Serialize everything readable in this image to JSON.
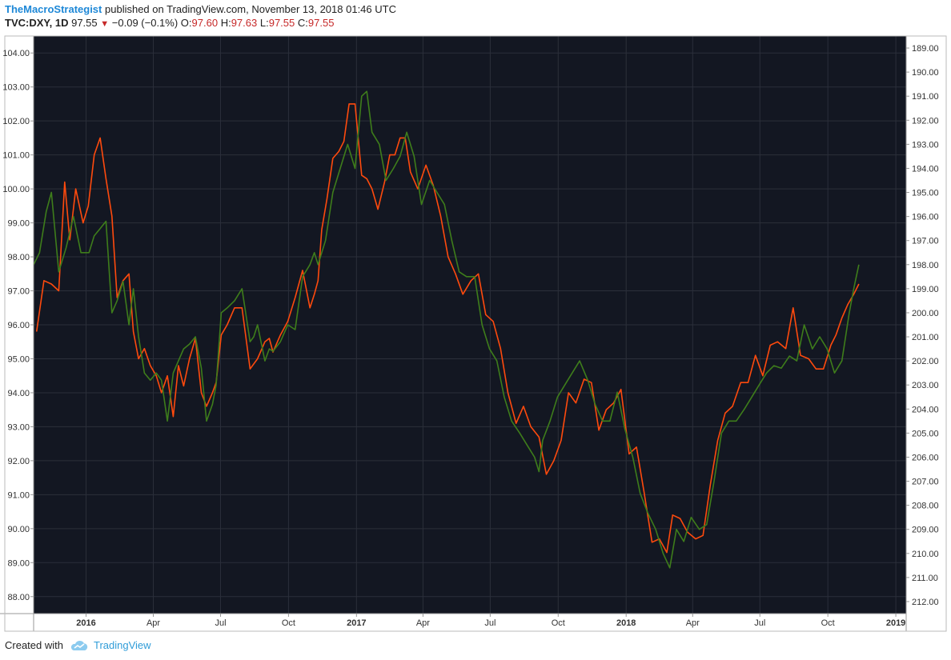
{
  "header": {
    "author": "TheMacroStrategist",
    "published": "published on TradingView.com, November 13, 2018 01:46 UTC",
    "symbol": "TVC:DXY, 1D",
    "last": "97.55",
    "change": "−0.09 (−0.1%)",
    "o_label": "O:",
    "o_value": "97.60",
    "h_label": "H:",
    "h_value": "97.63",
    "l_label": "L:",
    "l_value": "97.55",
    "c_label": "C:",
    "c_value": "97.55"
  },
  "footer": {
    "created_with": "Created with",
    "brand": "TradingView"
  },
  "colors": {
    "background": "#131722",
    "grid": "#2b2f3a",
    "dxy": "#ff4a0d",
    "inverted": "#3e7d1b",
    "axis_text": "#333333"
  },
  "chart_data": {
    "type": "line",
    "title": "",
    "xlabel": "",
    "ylabel": "",
    "x_tick_labels": [
      "2016",
      "Apr",
      "Jul",
      "Oct",
      "2017",
      "Apr",
      "Jul",
      "Oct",
      "2018",
      "Apr",
      "Jul",
      "Oct",
      "2019"
    ],
    "x_tick_dates": [
      "2016-01-01",
      "2016-04-01",
      "2016-07-01",
      "2016-10-01",
      "2017-01-01",
      "2017-04-01",
      "2017-07-01",
      "2017-10-01",
      "2018-01-01",
      "2018-04-01",
      "2018-07-01",
      "2018-10-01",
      "2019-01-01"
    ],
    "x_range": [
      "2015-10-22",
      "2019-01-15"
    ],
    "left_axis": {
      "range": [
        87.5,
        104.5
      ],
      "tick_labels": [
        "104.00",
        "103.00",
        "102.00",
        "101.00",
        "100.00",
        "99.00",
        "98.00",
        "97.00",
        "96.00",
        "95.00",
        "94.00",
        "93.00",
        "92.00",
        "91.00",
        "90.00",
        "89.00",
        "88.00"
      ]
    },
    "right_axis": {
      "inverted": true,
      "range": [
        212.5,
        188.5
      ],
      "tick_labels": [
        "189.00",
        "190.00",
        "191.00",
        "192.00",
        "193.00",
        "194.00",
        "195.00",
        "196.00",
        "197.00",
        "198.00",
        "199.00",
        "200.00",
        "201.00",
        "202.00",
        "203.00",
        "204.00",
        "205.00",
        "206.00",
        "207.00",
        "208.00",
        "209.00",
        "210.00",
        "211.00",
        "212.00"
      ]
    },
    "grid": true,
    "series": [
      {
        "axis": "left",
        "color": "#ff4a0d",
        "x": [
          "2015-10-26",
          "2015-11-05",
          "2015-11-15",
          "2015-11-25",
          "2015-12-03",
          "2015-12-10",
          "2015-12-18",
          "2015-12-28",
          "2016-01-04",
          "2016-01-12",
          "2016-01-20",
          "2016-01-28",
          "2016-02-05",
          "2016-02-12",
          "2016-02-20",
          "2016-02-28",
          "2016-03-05",
          "2016-03-12",
          "2016-03-20",
          "2016-03-28",
          "2016-04-05",
          "2016-04-12",
          "2016-04-20",
          "2016-04-28",
          "2016-05-05",
          "2016-05-12",
          "2016-05-20",
          "2016-05-28",
          "2016-06-05",
          "2016-06-12",
          "2016-06-20",
          "2016-06-25",
          "2016-07-02",
          "2016-07-10",
          "2016-07-20",
          "2016-07-30",
          "2016-08-10",
          "2016-08-20",
          "2016-08-30",
          "2016-09-05",
          "2016-09-10",
          "2016-09-20",
          "2016-09-30",
          "2016-10-10",
          "2016-10-20",
          "2016-10-30",
          "2016-11-05",
          "2016-11-10",
          "2016-11-15",
          "2016-11-22",
          "2016-11-30",
          "2016-12-08",
          "2016-12-15",
          "2016-12-22",
          "2016-12-30",
          "2017-01-08",
          "2017-01-15",
          "2017-01-22",
          "2017-01-30",
          "2017-02-08",
          "2017-02-15",
          "2017-02-22",
          "2017-03-01",
          "2017-03-08",
          "2017-03-15",
          "2017-03-25",
          "2017-04-05",
          "2017-04-15",
          "2017-04-25",
          "2017-05-05",
          "2017-05-15",
          "2017-05-25",
          "2017-06-05",
          "2017-06-15",
          "2017-06-25",
          "2017-07-05",
          "2017-07-15",
          "2017-07-25",
          "2017-08-05",
          "2017-08-15",
          "2017-08-25",
          "2017-09-05",
          "2017-09-15",
          "2017-09-25",
          "2017-10-05",
          "2017-10-15",
          "2017-10-25",
          "2017-11-05",
          "2017-11-15",
          "2017-11-25",
          "2017-12-05",
          "2017-12-15",
          "2017-12-25",
          "2018-01-05",
          "2018-01-15",
          "2018-01-25",
          "2018-02-05",
          "2018-02-15",
          "2018-02-25",
          "2018-03-05",
          "2018-03-15",
          "2018-03-25",
          "2018-04-05",
          "2018-04-15",
          "2018-04-25",
          "2018-05-05",
          "2018-05-15",
          "2018-05-25",
          "2018-06-05",
          "2018-06-15",
          "2018-06-25",
          "2018-07-05",
          "2018-07-15",
          "2018-07-25",
          "2018-08-05",
          "2018-08-15",
          "2018-08-25",
          "2018-09-05",
          "2018-09-15",
          "2018-09-25",
          "2018-10-05",
          "2018-10-12",
          "2018-10-20",
          "2018-10-28",
          "2018-11-05",
          "2018-11-12"
        ],
        "y": [
          95.8,
          97.3,
          97.2,
          97.0,
          100.2,
          98.5,
          100.0,
          99.0,
          99.5,
          101.0,
          101.5,
          100.3,
          99.2,
          96.8,
          97.3,
          97.5,
          95.8,
          95.0,
          95.3,
          94.8,
          94.5,
          94.0,
          94.5,
          93.3,
          94.8,
          94.2,
          95.0,
          95.6,
          94.0,
          93.6,
          94.0,
          94.3,
          95.7,
          96.0,
          96.5,
          96.5,
          94.7,
          95.0,
          95.5,
          95.6,
          95.2,
          95.7,
          96.1,
          96.8,
          97.6,
          96.5,
          96.9,
          97.3,
          98.8,
          99.7,
          100.9,
          101.1,
          101.4,
          102.5,
          102.5,
          100.4,
          100.3,
          100.0,
          99.4,
          100.2,
          101.0,
          101.0,
          101.5,
          101.5,
          100.5,
          100.0,
          100.7,
          100.1,
          99.2,
          98.0,
          97.5,
          96.9,
          97.3,
          97.5,
          96.3,
          96.1,
          95.3,
          94.0,
          93.1,
          93.6,
          93.0,
          92.7,
          91.6,
          92.0,
          92.6,
          94.0,
          93.7,
          94.4,
          94.3,
          92.9,
          93.5,
          93.7,
          94.1,
          92.2,
          92.4,
          91.1,
          89.6,
          89.7,
          89.3,
          90.4,
          90.3,
          89.9,
          89.7,
          89.8,
          91.3,
          92.6,
          93.4,
          93.6,
          94.3,
          94.3,
          95.1,
          94.5,
          95.4,
          95.5,
          95.3,
          96.5,
          95.1,
          95.0,
          94.7,
          94.7,
          95.4,
          95.7,
          96.2,
          96.6,
          96.9,
          97.2
        ]
      },
      {
        "axis": "right",
        "color": "#3e7d1b",
        "x": [
          "2015-10-22",
          "2015-10-30",
          "2015-11-08",
          "2015-11-15",
          "2015-11-25",
          "2015-12-05",
          "2015-12-15",
          "2015-12-25",
          "2016-01-05",
          "2016-01-12",
          "2016-01-20",
          "2016-01-28",
          "2016-02-05",
          "2016-02-12",
          "2016-02-20",
          "2016-02-28",
          "2016-03-05",
          "2016-03-12",
          "2016-03-20",
          "2016-03-28",
          "2016-04-05",
          "2016-04-12",
          "2016-04-20",
          "2016-04-28",
          "2016-05-05",
          "2016-05-12",
          "2016-05-20",
          "2016-05-28",
          "2016-06-05",
          "2016-06-12",
          "2016-06-20",
          "2016-06-25",
          "2016-07-02",
          "2016-07-10",
          "2016-07-20",
          "2016-07-30",
          "2016-08-10",
          "2016-08-15",
          "2016-08-20",
          "2016-08-30",
          "2016-09-05",
          "2016-09-10",
          "2016-09-20",
          "2016-09-30",
          "2016-10-10",
          "2016-10-20",
          "2016-10-30",
          "2016-11-05",
          "2016-11-10",
          "2016-11-20",
          "2016-11-30",
          "2016-12-10",
          "2016-12-20",
          "2016-12-30",
          "2017-01-08",
          "2017-01-15",
          "2017-01-22",
          "2017-02-01",
          "2017-02-10",
          "2017-02-20",
          "2017-03-01",
          "2017-03-10",
          "2017-03-20",
          "2017-03-30",
          "2017-04-10",
          "2017-04-20",
          "2017-04-30",
          "2017-05-10",
          "2017-05-20",
          "2017-05-30",
          "2017-06-10",
          "2017-06-20",
          "2017-06-30",
          "2017-07-10",
          "2017-07-20",
          "2017-07-30",
          "2017-08-10",
          "2017-08-20",
          "2017-08-30",
          "2017-09-05",
          "2017-09-10",
          "2017-09-20",
          "2017-09-30",
          "2017-10-10",
          "2017-10-20",
          "2017-10-30",
          "2017-11-10",
          "2017-11-20",
          "2017-11-30",
          "2017-12-10",
          "2017-12-20",
          "2017-12-30",
          "2018-01-10",
          "2018-01-20",
          "2018-01-30",
          "2018-02-10",
          "2018-02-20",
          "2018-03-01",
          "2018-03-10",
          "2018-03-20",
          "2018-03-30",
          "2018-04-10",
          "2018-04-20",
          "2018-04-30",
          "2018-05-10",
          "2018-05-20",
          "2018-05-30",
          "2018-06-10",
          "2018-06-20",
          "2018-06-30",
          "2018-07-10",
          "2018-07-20",
          "2018-07-30",
          "2018-08-10",
          "2018-08-20",
          "2018-08-30",
          "2018-09-10",
          "2018-09-20",
          "2018-09-30",
          "2018-10-10",
          "2018-10-20",
          "2018-10-30",
          "2018-11-05",
          "2018-11-12"
        ],
        "y": [
          198.0,
          197.5,
          195.8,
          195.0,
          198.3,
          197.3,
          196.0,
          197.5,
          197.5,
          196.8,
          196.5,
          196.2,
          200.0,
          199.5,
          198.7,
          200.5,
          199.0,
          201.0,
          202.5,
          202.8,
          202.5,
          202.8,
          204.5,
          202.5,
          202.0,
          201.5,
          201.3,
          201.0,
          202.3,
          204.5,
          203.8,
          203.0,
          200.0,
          199.8,
          199.5,
          199.0,
          201.2,
          201.0,
          200.5,
          202.0,
          201.5,
          201.6,
          201.2,
          200.5,
          200.7,
          198.5,
          198.0,
          197.5,
          198.0,
          197.0,
          195.0,
          194.0,
          193.0,
          194.0,
          191.0,
          190.8,
          192.5,
          193.0,
          194.5,
          194.0,
          193.5,
          192.5,
          193.5,
          195.5,
          194.5,
          195.0,
          195.5,
          197.0,
          198.3,
          198.5,
          198.5,
          200.5,
          201.5,
          202.0,
          203.5,
          204.5,
          205.0,
          205.5,
          206.0,
          206.6,
          205.3,
          204.5,
          203.5,
          203.0,
          202.5,
          202.0,
          202.8,
          203.8,
          204.5,
          204.5,
          203.3,
          204.8,
          206.0,
          207.5,
          208.3,
          209.0,
          210.0,
          210.6,
          209.0,
          209.5,
          208.5,
          209.0,
          208.8,
          207.0,
          205.0,
          204.5,
          204.5,
          204.0,
          203.5,
          203.0,
          202.5,
          202.2,
          202.3,
          201.8,
          202.0,
          200.5,
          201.5,
          201.0,
          201.5,
          202.5,
          202.0,
          200.0,
          199.0,
          198.0
        ]
      }
    ]
  }
}
